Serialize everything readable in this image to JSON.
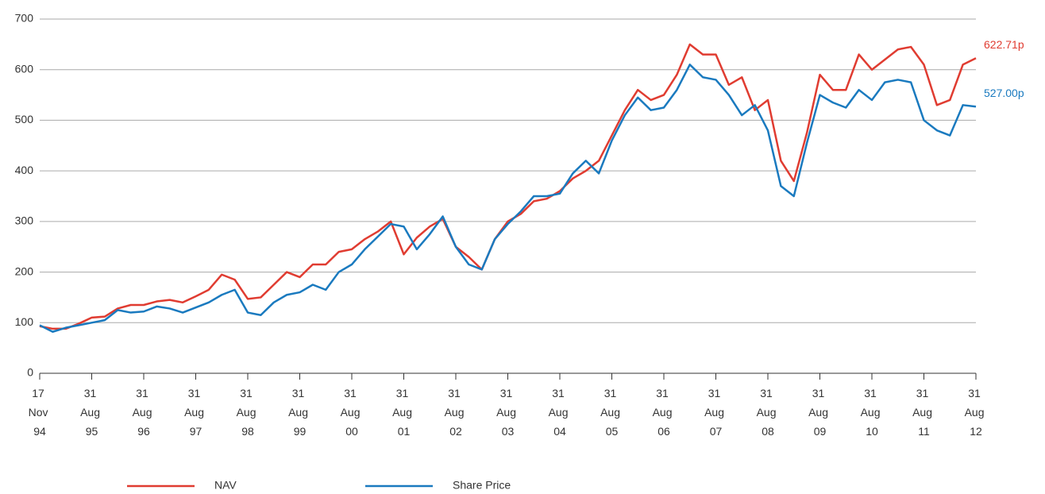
{
  "chart_data": {
    "type": "line",
    "categories": [
      "17 Nov 94",
      null,
      null,
      null,
      "31 Aug 95",
      null,
      null,
      null,
      "31 Aug 96",
      null,
      null,
      null,
      "31 Aug 97",
      null,
      null,
      null,
      "31 Aug 98",
      null,
      null,
      null,
      "31 Aug 99",
      null,
      null,
      null,
      "31 Aug 00",
      null,
      null,
      null,
      "31 Aug 01",
      null,
      null,
      null,
      "31 Aug 02",
      null,
      null,
      null,
      "31 Aug 03",
      null,
      null,
      null,
      "31 Aug 04",
      null,
      null,
      null,
      "31 Aug 05",
      null,
      null,
      null,
      "31 Aug 06",
      null,
      null,
      null,
      "31 Aug 07",
      null,
      null,
      null,
      "31 Aug 08",
      null,
      null,
      null,
      "31 Aug 09",
      null,
      null,
      null,
      "31 Aug 10",
      null,
      null,
      null,
      "31 Aug 11",
      null,
      null,
      null,
      "31 Aug 12"
    ],
    "series": [
      {
        "name": "NAV",
        "color": "#e03c31",
        "values": [
          93,
          88,
          88,
          98,
          110,
          112,
          128,
          135,
          135,
          142,
          145,
          140,
          152,
          165,
          195,
          185,
          147,
          150,
          175,
          200,
          190,
          215,
          215,
          240,
          245,
          265,
          280,
          300,
          235,
          268,
          290,
          305,
          250,
          230,
          205,
          265,
          300,
          315,
          340,
          345,
          360,
          385,
          400,
          420,
          470,
          520,
          560,
          540,
          550,
          590,
          650,
          630,
          630,
          570,
          585,
          520,
          540,
          420,
          380,
          475,
          590,
          560,
          560,
          630,
          600,
          620,
          640,
          645,
          610,
          530,
          540,
          610,
          622.71
        ],
        "value_labels": [
          null,
          null,
          null,
          null,
          null,
          null,
          null,
          null,
          null,
          null,
          null,
          null,
          null,
          null,
          null,
          null,
          null,
          null,
          null,
          null,
          null,
          null,
          null,
          null,
          null,
          null,
          null,
          null,
          null,
          null,
          null,
          null,
          null,
          null,
          null,
          null,
          null,
          null,
          null,
          null,
          null,
          null,
          null,
          null,
          null,
          null,
          null,
          null,
          null,
          null,
          null,
          null,
          null,
          null,
          null,
          null,
          null,
          null,
          null,
          null,
          null,
          null,
          null,
          null,
          null,
          null,
          null,
          null,
          null,
          null,
          null,
          null,
          "622.71p"
        ]
      },
      {
        "name": "Share Price",
        "color": "#1a7abf",
        "values": [
          95,
          82,
          90,
          95,
          100,
          105,
          125,
          120,
          122,
          132,
          128,
          120,
          130,
          140,
          155,
          165,
          120,
          115,
          140,
          155,
          160,
          175,
          165,
          200,
          215,
          245,
          270,
          295,
          290,
          245,
          275,
          310,
          250,
          215,
          205,
          265,
          295,
          320,
          350,
          350,
          355,
          395,
          420,
          395,
          460,
          510,
          545,
          520,
          525,
          560,
          610,
          585,
          580,
          550,
          510,
          530,
          480,
          370,
          350,
          455,
          550,
          535,
          525,
          560,
          540,
          575,
          580,
          575,
          500,
          480,
          470,
          530,
          527
        ],
        "value_labels": [
          null,
          null,
          null,
          null,
          null,
          null,
          null,
          null,
          null,
          null,
          null,
          null,
          null,
          null,
          null,
          null,
          null,
          null,
          null,
          null,
          null,
          null,
          null,
          null,
          null,
          null,
          null,
          null,
          null,
          null,
          null,
          null,
          null,
          null,
          null,
          null,
          null,
          null,
          null,
          null,
          null,
          null,
          null,
          null,
          null,
          null,
          null,
          null,
          null,
          null,
          null,
          null,
          null,
          null,
          null,
          null,
          null,
          null,
          null,
          null,
          null,
          null,
          null,
          null,
          null,
          null,
          null,
          null,
          null,
          null,
          null,
          null,
          "527.00p"
        ]
      }
    ],
    "ylim": [
      0,
      700
    ],
    "yticks": [
      0,
      100,
      200,
      300,
      400,
      500,
      600,
      700
    ],
    "grid": true,
    "legend": "bottom"
  }
}
